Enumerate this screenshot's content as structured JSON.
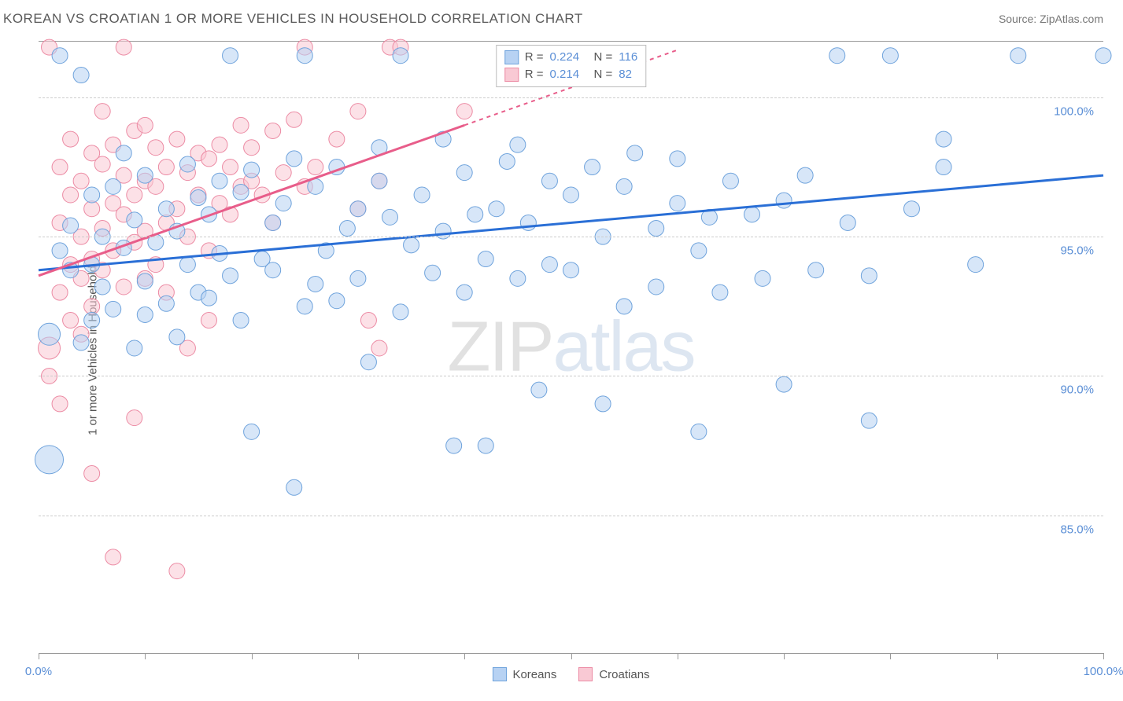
{
  "title": "KOREAN VS CROATIAN 1 OR MORE VEHICLES IN HOUSEHOLD CORRELATION CHART",
  "source_label": "Source: ZipAtlas.com",
  "watermark_zip": "ZIP",
  "watermark_atlas": "atlas",
  "y_axis_label": "1 or more Vehicles in Household",
  "x_axis": {
    "min": 0,
    "max": 100,
    "ticks": [
      0,
      10,
      20,
      30,
      40,
      50,
      60,
      70,
      80,
      90,
      100
    ],
    "labels": {
      "0": "0.0%",
      "100": "100.0%"
    }
  },
  "y_axis": {
    "min": 80,
    "max": 102,
    "ticks": [
      85,
      90,
      95,
      100
    ],
    "label_fmt": {
      "85": "85.0%",
      "90": "90.0%",
      "95": "95.0%",
      "100": "100.0%"
    }
  },
  "colors": {
    "blue_fill": "#b7d2f3",
    "blue_stroke": "#6fa3dc",
    "blue_line": "#2a6fd6",
    "pink_fill": "#f9c9d4",
    "pink_stroke": "#ec8ba4",
    "pink_line": "#e85d8a",
    "grid": "#cccccc",
    "tick_text": "#5b8fd6",
    "axis_text": "#555555"
  },
  "series": {
    "blue": {
      "name": "Koreans",
      "R": "0.224",
      "N": "116",
      "trend": {
        "x1": 0,
        "y1": 93.8,
        "x2": 100,
        "y2": 97.2
      },
      "points": [
        [
          1,
          91.5,
          14
        ],
        [
          1,
          87.0,
          18
        ],
        [
          2,
          94.5,
          10
        ],
        [
          2,
          101.5,
          10
        ],
        [
          3,
          93.8,
          10
        ],
        [
          3,
          95.4,
          10
        ],
        [
          4,
          91.2,
          10
        ],
        [
          4,
          100.8,
          10
        ],
        [
          5,
          94.0,
          10
        ],
        [
          5,
          96.5,
          10
        ],
        [
          5,
          92.0,
          10
        ],
        [
          6,
          95.0,
          10
        ],
        [
          6,
          93.2,
          10
        ],
        [
          7,
          92.4,
          10
        ],
        [
          7,
          96.8,
          10
        ],
        [
          8,
          94.6,
          10
        ],
        [
          8,
          98.0,
          10
        ],
        [
          9,
          91.0,
          10
        ],
        [
          9,
          95.6,
          10
        ],
        [
          10,
          93.4,
          10
        ],
        [
          10,
          97.2,
          10
        ],
        [
          10,
          92.2,
          10
        ],
        [
          11,
          94.8,
          10
        ],
        [
          12,
          92.6,
          10
        ],
        [
          12,
          96.0,
          10
        ],
        [
          13,
          95.2,
          10
        ],
        [
          13,
          91.4,
          10
        ],
        [
          14,
          94.0,
          10
        ],
        [
          14,
          97.6,
          10
        ],
        [
          15,
          93.0,
          10
        ],
        [
          15,
          96.4,
          10
        ],
        [
          16,
          95.8,
          10
        ],
        [
          16,
          92.8,
          10
        ],
        [
          17,
          97.0,
          10
        ],
        [
          17,
          94.4,
          10
        ],
        [
          18,
          101.5,
          10
        ],
        [
          18,
          93.6,
          10
        ],
        [
          19,
          96.6,
          10
        ],
        [
          19,
          92.0,
          10
        ],
        [
          20,
          97.4,
          10
        ],
        [
          20,
          88.0,
          10
        ],
        [
          21,
          94.2,
          10
        ],
        [
          22,
          95.5,
          10
        ],
        [
          22,
          93.8,
          10
        ],
        [
          23,
          96.2,
          10
        ],
        [
          24,
          86.0,
          10
        ],
        [
          24,
          97.8,
          10
        ],
        [
          25,
          92.5,
          10
        ],
        [
          25,
          101.5,
          10
        ],
        [
          26,
          93.3,
          10
        ],
        [
          26,
          96.8,
          10
        ],
        [
          27,
          94.5,
          10
        ],
        [
          28,
          97.5,
          10
        ],
        [
          28,
          92.7,
          10
        ],
        [
          29,
          95.3,
          10
        ],
        [
          30,
          96.0,
          10
        ],
        [
          30,
          93.5,
          10
        ],
        [
          31,
          90.5,
          10
        ],
        [
          32,
          98.2,
          10
        ],
        [
          32,
          97.0,
          10
        ],
        [
          33,
          95.7,
          10
        ],
        [
          34,
          101.5,
          10
        ],
        [
          34,
          92.3,
          10
        ],
        [
          35,
          94.7,
          10
        ],
        [
          36,
          96.5,
          10
        ],
        [
          37,
          93.7,
          10
        ],
        [
          38,
          95.2,
          10
        ],
        [
          38,
          98.5,
          10
        ],
        [
          39,
          87.5,
          10
        ],
        [
          40,
          97.3,
          10
        ],
        [
          40,
          93.0,
          10
        ],
        [
          41,
          95.8,
          10
        ],
        [
          42,
          94.2,
          10
        ],
        [
          42,
          87.5,
          10
        ],
        [
          43,
          96.0,
          10
        ],
        [
          44,
          97.7,
          10
        ],
        [
          45,
          93.5,
          10
        ],
        [
          45,
          98.3,
          10
        ],
        [
          46,
          95.5,
          10
        ],
        [
          47,
          89.5,
          10
        ],
        [
          48,
          97.0,
          10
        ],
        [
          48,
          94.0,
          10
        ],
        [
          50,
          93.8,
          10
        ],
        [
          50,
          96.5,
          10
        ],
        [
          52,
          97.5,
          10
        ],
        [
          53,
          89.0,
          10
        ],
        [
          53,
          95.0,
          10
        ],
        [
          55,
          96.8,
          10
        ],
        [
          55,
          92.5,
          10
        ],
        [
          56,
          98.0,
          10
        ],
        [
          58,
          95.3,
          10
        ],
        [
          58,
          93.2,
          10
        ],
        [
          60,
          96.2,
          10
        ],
        [
          60,
          97.8,
          10
        ],
        [
          62,
          88.0,
          10
        ],
        [
          62,
          94.5,
          10
        ],
        [
          63,
          95.7,
          10
        ],
        [
          64,
          93.0,
          10
        ],
        [
          65,
          97.0,
          10
        ],
        [
          67,
          95.8,
          10
        ],
        [
          68,
          93.5,
          10
        ],
        [
          70,
          96.3,
          10
        ],
        [
          70,
          89.7,
          10
        ],
        [
          72,
          97.2,
          10
        ],
        [
          73,
          93.8,
          10
        ],
        [
          75,
          101.5,
          10
        ],
        [
          76,
          95.5,
          10
        ],
        [
          78,
          93.6,
          10
        ],
        [
          78,
          88.4,
          10
        ],
        [
          80,
          101.5,
          10
        ],
        [
          82,
          96.0,
          10
        ],
        [
          85,
          97.5,
          10
        ],
        [
          85,
          98.5,
          10
        ],
        [
          88,
          94.0,
          10
        ],
        [
          92,
          101.5,
          10
        ],
        [
          100,
          101.5,
          10
        ]
      ]
    },
    "pink": {
      "name": "Croatians",
      "R": "0.214",
      "N": "82",
      "trend": {
        "x1": 0,
        "y1": 93.6,
        "x2": 40,
        "y2": 99.0
      },
      "trend_dashed": {
        "x1": 40,
        "y1": 99.0,
        "x2": 60,
        "y2": 101.7
      },
      "points": [
        [
          1,
          91.0,
          14
        ],
        [
          1,
          101.8,
          10
        ],
        [
          1,
          90.0,
          10
        ],
        [
          2,
          95.5,
          10
        ],
        [
          2,
          93.0,
          10
        ],
        [
          2,
          97.5,
          10
        ],
        [
          2,
          89.0,
          10
        ],
        [
          3,
          94.0,
          10
        ],
        [
          3,
          96.5,
          10
        ],
        [
          3,
          92.0,
          10
        ],
        [
          3,
          98.5,
          10
        ],
        [
          4,
          95.0,
          10
        ],
        [
          4,
          93.5,
          10
        ],
        [
          4,
          97.0,
          10
        ],
        [
          4,
          91.5,
          10
        ],
        [
          5,
          96.0,
          10
        ],
        [
          5,
          94.2,
          10
        ],
        [
          5,
          98.0,
          10
        ],
        [
          5,
          92.5,
          10
        ],
        [
          5,
          86.5,
          10
        ],
        [
          6,
          95.3,
          10
        ],
        [
          6,
          97.6,
          10
        ],
        [
          6,
          93.8,
          10
        ],
        [
          6,
          99.5,
          10
        ],
        [
          7,
          96.2,
          10
        ],
        [
          7,
          94.5,
          10
        ],
        [
          7,
          98.3,
          10
        ],
        [
          7,
          83.5,
          10
        ],
        [
          8,
          95.8,
          10
        ],
        [
          8,
          101.8,
          10
        ],
        [
          8,
          93.2,
          10
        ],
        [
          8,
          97.2,
          10
        ],
        [
          9,
          96.5,
          10
        ],
        [
          9,
          94.8,
          10
        ],
        [
          9,
          98.8,
          10
        ],
        [
          9,
          88.5,
          10
        ],
        [
          10,
          97.0,
          10
        ],
        [
          10,
          95.2,
          10
        ],
        [
          10,
          93.5,
          10
        ],
        [
          10,
          99.0,
          10
        ],
        [
          11,
          96.8,
          10
        ],
        [
          11,
          94.0,
          10
        ],
        [
          11,
          98.2,
          10
        ],
        [
          12,
          97.5,
          10
        ],
        [
          12,
          95.5,
          10
        ],
        [
          12,
          93.0,
          10
        ],
        [
          13,
          96.0,
          10
        ],
        [
          13,
          98.5,
          10
        ],
        [
          13,
          83.0,
          10
        ],
        [
          14,
          97.3,
          10
        ],
        [
          14,
          95.0,
          10
        ],
        [
          14,
          91.0,
          10
        ],
        [
          15,
          96.5,
          10
        ],
        [
          15,
          98.0,
          10
        ],
        [
          16,
          97.8,
          10
        ],
        [
          16,
          94.5,
          10
        ],
        [
          16,
          92.0,
          10
        ],
        [
          17,
          98.3,
          10
        ],
        [
          17,
          96.2,
          10
        ],
        [
          18,
          97.5,
          10
        ],
        [
          18,
          95.8,
          10
        ],
        [
          19,
          99.0,
          10
        ],
        [
          19,
          96.8,
          10
        ],
        [
          20,
          98.2,
          10
        ],
        [
          20,
          97.0,
          10
        ],
        [
          21,
          96.5,
          10
        ],
        [
          22,
          98.8,
          10
        ],
        [
          22,
          95.5,
          10
        ],
        [
          23,
          97.3,
          10
        ],
        [
          24,
          99.2,
          10
        ],
        [
          25,
          96.8,
          10
        ],
        [
          25,
          101.8,
          10
        ],
        [
          26,
          97.5,
          10
        ],
        [
          28,
          98.5,
          10
        ],
        [
          30,
          99.5,
          10
        ],
        [
          30,
          96.0,
          10
        ],
        [
          31,
          92.0,
          10
        ],
        [
          32,
          97.0,
          10
        ],
        [
          32,
          91.0,
          10
        ],
        [
          33,
          101.8,
          10
        ],
        [
          34,
          101.8,
          10
        ],
        [
          40,
          99.5,
          10
        ]
      ]
    }
  },
  "bottom_legend_blue": "Koreans",
  "bottom_legend_pink": "Croatians",
  "legend_R_label": "R =",
  "legend_N_label": "N ="
}
